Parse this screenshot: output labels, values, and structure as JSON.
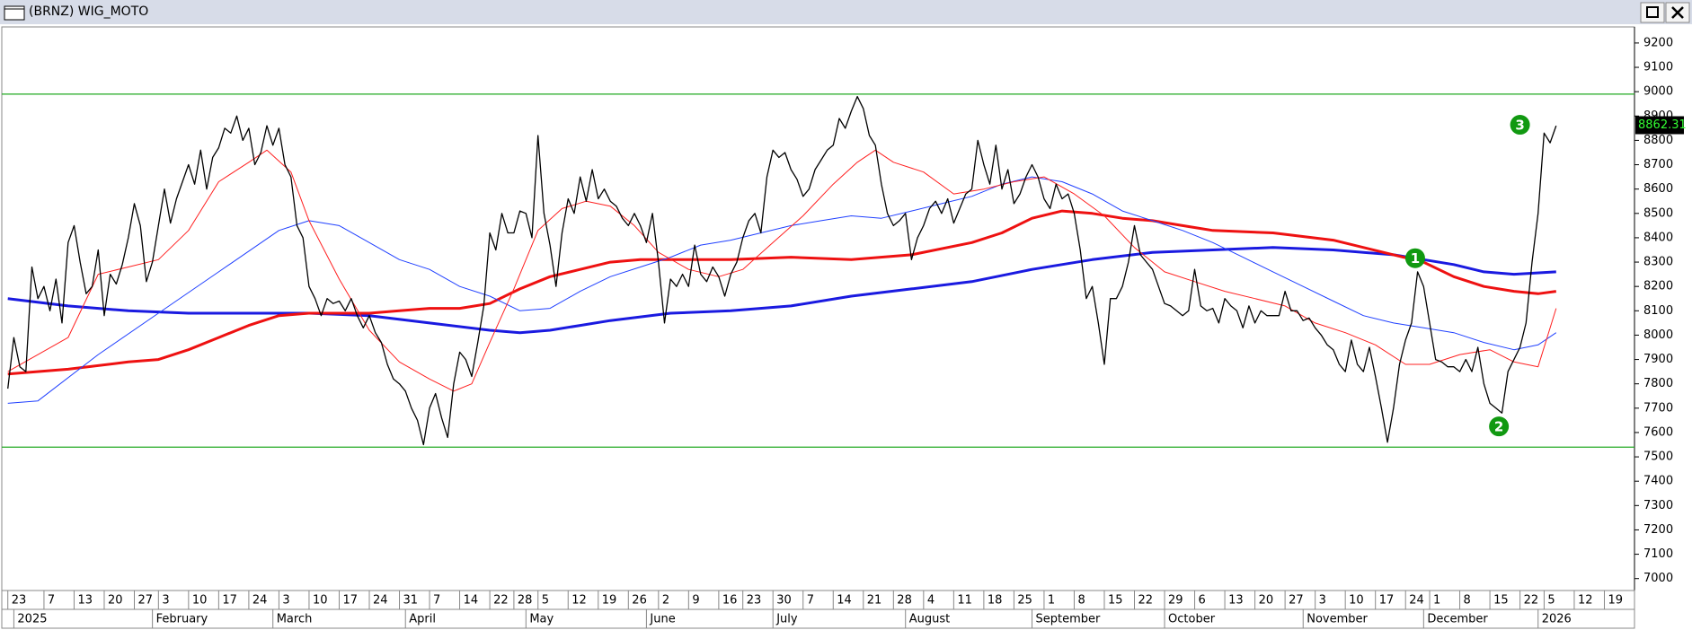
{
  "chart_data": {
    "type": "line",
    "title": "(BRNZ) WIG_MOTO",
    "xlim": [
      -1,
      270
    ],
    "ylim": [
      6951,
      9266
    ],
    "yticks": [
      7000,
      7100,
      7200,
      7300,
      7400,
      7500,
      7600,
      7700,
      7800,
      7900,
      8000,
      8100,
      8200,
      8300,
      8400,
      8500,
      8600,
      8700,
      8800,
      8900,
      9000,
      9100,
      9200
    ],
    "xticks": [
      {
        "value": 0,
        "label": "23"
      },
      {
        "value": 6,
        "label": "7"
      },
      {
        "value": 11,
        "label": "13"
      },
      {
        "value": 16,
        "label": "20"
      },
      {
        "value": 21,
        "label": "27"
      },
      {
        "value": 25,
        "label": "3"
      },
      {
        "value": 30,
        "label": "10"
      },
      {
        "value": 35,
        "label": "17"
      },
      {
        "value": 40,
        "label": "24"
      },
      {
        "value": 45,
        "label": "3"
      },
      {
        "value": 50,
        "label": "10"
      },
      {
        "value": 55,
        "label": "17"
      },
      {
        "value": 60,
        "label": "24"
      },
      {
        "value": 65,
        "label": "31"
      },
      {
        "value": 70,
        "label": "7"
      },
      {
        "value": 75,
        "label": "14"
      },
      {
        "value": 80,
        "label": "22"
      },
      {
        "value": 84,
        "label": "28"
      },
      {
        "value": 88,
        "label": "5"
      },
      {
        "value": 93,
        "label": "12"
      },
      {
        "value": 98,
        "label": "19"
      },
      {
        "value": 103,
        "label": "26"
      },
      {
        "value": 108,
        "label": "2"
      },
      {
        "value": 113,
        "label": "9"
      },
      {
        "value": 118,
        "label": "16"
      },
      {
        "value": 122,
        "label": "23"
      },
      {
        "value": 127,
        "label": "30"
      },
      {
        "value": 132,
        "label": "7"
      },
      {
        "value": 137,
        "label": "14"
      },
      {
        "value": 142,
        "label": "21"
      },
      {
        "value": 147,
        "label": "28"
      },
      {
        "value": 152,
        "label": "4"
      },
      {
        "value": 157,
        "label": "11"
      },
      {
        "value": 162,
        "label": "18"
      },
      {
        "value": 167,
        "label": "25"
      },
      {
        "value": 172,
        "label": "1"
      },
      {
        "value": 177,
        "label": "8"
      },
      {
        "value": 182,
        "label": "15"
      },
      {
        "value": 187,
        "label": "22"
      },
      {
        "value": 192,
        "label": "29"
      },
      {
        "value": 197,
        "label": "6"
      },
      {
        "value": 202,
        "label": "13"
      },
      {
        "value": 207,
        "label": "20"
      },
      {
        "value": 212,
        "label": "27"
      },
      {
        "value": 217,
        "label": "3"
      },
      {
        "value": 222,
        "label": "10"
      },
      {
        "value": 227,
        "label": "17"
      },
      {
        "value": 232,
        "label": "24"
      },
      {
        "value": 236,
        "label": "1"
      },
      {
        "value": 241,
        "label": "8"
      },
      {
        "value": 246,
        "label": "15"
      },
      {
        "value": 251,
        "label": "22"
      },
      {
        "value": 255,
        "label": "5"
      },
      {
        "value": 260,
        "label": "12"
      },
      {
        "value": 265,
        "label": "19"
      }
    ],
    "month_ticks": [
      {
        "value": 1,
        "label": "2025"
      },
      {
        "value": 24,
        "label": "February"
      },
      {
        "value": 44,
        "label": "March"
      },
      {
        "value": 66,
        "label": "April"
      },
      {
        "value": 86,
        "label": "May"
      },
      {
        "value": 106,
        "label": "June"
      },
      {
        "value": 127,
        "label": "July"
      },
      {
        "value": 149,
        "label": "August"
      },
      {
        "value": 170,
        "label": "September"
      },
      {
        "value": 192,
        "label": "October"
      },
      {
        "value": 215,
        "label": "November"
      },
      {
        "value": 235,
        "label": "December"
      },
      {
        "value": 254,
        "label": "2026"
      }
    ],
    "hlines": {
      "color": "#22aa22",
      "values": [
        8990,
        7540
      ]
    },
    "last_value": 8862.31,
    "series": [
      {
        "color": "#000000",
        "width": 1.3,
        "values": [
          7780,
          7990,
          7870,
          7850,
          8280,
          8150,
          8200,
          8100,
          8230,
          8050,
          8380,
          8450,
          8300,
          8170,
          8200,
          8350,
          8080,
          8250,
          8210,
          8290,
          8400,
          8540,
          8450,
          8220,
          8300,
          8450,
          8600,
          8460,
          8560,
          8630,
          8700,
          8620,
          8760,
          8600,
          8730,
          8770,
          8850,
          8830,
          8900,
          8800,
          8850,
          8700,
          8750,
          8860,
          8780,
          8850,
          8700,
          8650,
          8450,
          8400,
          8200,
          8150,
          8080,
          8150,
          8130,
          8140,
          8100,
          8150,
          8080,
          8030,
          8080,
          8010,
          7970,
          7880,
          7820,
          7800,
          7770,
          7700,
          7650,
          7550,
          7700,
          7760,
          7660,
          7580,
          7800,
          7930,
          7900,
          7830,
          7970,
          8120,
          8420,
          8350,
          8500,
          8420,
          8420,
          8510,
          8500,
          8400,
          8820,
          8500,
          8370,
          8200,
          8420,
          8560,
          8500,
          8650,
          8550,
          8680,
          8560,
          8600,
          8550,
          8530,
          8480,
          8450,
          8500,
          8450,
          8380,
          8500,
          8300,
          8050,
          8230,
          8200,
          8250,
          8200,
          8370,
          8250,
          8220,
          8280,
          8240,
          8160,
          8250,
          8300,
          8400,
          8470,
          8500,
          8420,
          8650,
          8760,
          8730,
          8750,
          8680,
          8640,
          8570,
          8600,
          8680,
          8720,
          8760,
          8780,
          8890,
          8850,
          8920,
          8980,
          8930,
          8820,
          8780,
          8620,
          8500,
          8450,
          8470,
          8500,
          8310,
          8400,
          8450,
          8520,
          8550,
          8500,
          8560,
          8460,
          8520,
          8580,
          8600,
          8800,
          8700,
          8620,
          8780,
          8600,
          8680,
          8540,
          8580,
          8650,
          8700,
          8650,
          8560,
          8520,
          8620,
          8560,
          8580,
          8500,
          8350,
          8150,
          8200,
          8050,
          7880,
          8150,
          8150,
          8200,
          8300,
          8450,
          8330,
          8300,
          8270,
          8200,
          8130,
          8120,
          8100,
          8080,
          8100,
          8270,
          8120,
          8100,
          8110,
          8050,
          8150,
          8120,
          8100,
          8030,
          8120,
          8050,
          8100,
          8080,
          8080,
          8080,
          8180,
          8100,
          8100,
          8060,
          8070,
          8030,
          8000,
          7960,
          7940,
          7880,
          7850,
          7980,
          7880,
          7850,
          7950,
          7830,
          7700,
          7560,
          7700,
          7880,
          7980,
          8050,
          8260,
          8200,
          8050,
          7900,
          7890,
          7870,
          7870,
          7850,
          7900,
          7850,
          7950,
          7800,
          7720,
          7700,
          7680,
          7850,
          7900,
          7950,
          8050,
          8300,
          8500,
          8830,
          8790,
          8860
        ]
      },
      {
        "color": "#ff2020",
        "width": 1,
        "x": [
          0,
          10,
          15,
          20,
          25,
          30,
          35,
          40,
          43,
          47,
          50,
          55,
          60,
          65,
          70,
          74,
          77,
          80,
          84,
          88,
          92,
          96,
          100,
          104,
          108,
          113,
          118,
          122,
          127,
          132,
          137,
          141,
          144,
          147,
          152,
          157,
          162,
          167,
          172,
          177,
          182,
          187,
          192,
          197,
          202,
          207,
          212,
          217,
          222,
          227,
          232,
          236,
          241,
          246,
          250,
          254,
          257
        ],
        "values": [
          7850,
          7990,
          8250,
          8280,
          8310,
          8430,
          8630,
          8710,
          8760,
          8670,
          8470,
          8230,
          8020,
          7890,
          7820,
          7770,
          7800,
          7970,
          8190,
          8430,
          8520,
          8550,
          8530,
          8450,
          8340,
          8270,
          8240,
          8270,
          8380,
          8490,
          8620,
          8710,
          8760,
          8710,
          8670,
          8580,
          8600,
          8630,
          8650,
          8580,
          8490,
          8360,
          8260,
          8220,
          8180,
          8150,
          8120,
          8050,
          8010,
          7960,
          7880,
          7880,
          7920,
          7940,
          7890,
          7870,
          8110
        ]
      },
      {
        "color": "#2040ff",
        "width": 1,
        "x": [
          0,
          5,
          15,
          25,
          35,
          45,
          50,
          55,
          60,
          65,
          70,
          75,
          80,
          85,
          90,
          95,
          100,
          105,
          110,
          115,
          120,
          125,
          130,
          135,
          140,
          145,
          150,
          155,
          160,
          165,
          170,
          175,
          180,
          185,
          190,
          195,
          200,
          205,
          210,
          215,
          220,
          225,
          230,
          235,
          240,
          245,
          250,
          254,
          257
        ],
        "values": [
          7720,
          7730,
          7920,
          8090,
          8260,
          8430,
          8470,
          8450,
          8380,
          8310,
          8270,
          8200,
          8160,
          8100,
          8110,
          8180,
          8240,
          8280,
          8320,
          8370,
          8390,
          8420,
          8450,
          8470,
          8490,
          8480,
          8510,
          8540,
          8570,
          8620,
          8650,
          8630,
          8580,
          8510,
          8470,
          8430,
          8380,
          8320,
          8260,
          8200,
          8140,
          8080,
          8050,
          8030,
          8010,
          7970,
          7940,
          7960,
          8010
        ]
      },
      {
        "color": "#ee1111",
        "width": 3,
        "x": [
          0,
          10,
          20,
          25,
          30,
          35,
          40,
          45,
          50,
          55,
          60,
          65,
          70,
          75,
          80,
          85,
          90,
          95,
          100,
          105,
          110,
          120,
          130,
          140,
          150,
          160,
          165,
          170,
          175,
          180,
          185,
          190,
          195,
          200,
          210,
          220,
          230,
          235,
          240,
          245,
          250,
          254,
          257
        ],
        "values": [
          7840,
          7860,
          7890,
          7900,
          7940,
          7990,
          8040,
          8080,
          8090,
          8090,
          8090,
          8100,
          8110,
          8110,
          8130,
          8190,
          8240,
          8270,
          8300,
          8310,
          8310,
          8310,
          8320,
          8310,
          8330,
          8380,
          8420,
          8480,
          8510,
          8500,
          8480,
          8470,
          8450,
          8430,
          8420,
          8390,
          8330,
          8300,
          8240,
          8200,
          8180,
          8170,
          8180
        ]
      },
      {
        "color": "#1a1ae0",
        "width": 3,
        "x": [
          0,
          10,
          20,
          30,
          40,
          50,
          60,
          70,
          80,
          85,
          90,
          95,
          100,
          110,
          120,
          130,
          140,
          150,
          160,
          170,
          180,
          190,
          200,
          210,
          220,
          230,
          235,
          240,
          245,
          250,
          257
        ],
        "values": [
          8150,
          8120,
          8100,
          8090,
          8090,
          8090,
          8080,
          8050,
          8020,
          8010,
          8020,
          8040,
          8060,
          8090,
          8100,
          8120,
          8160,
          8190,
          8220,
          8270,
          8310,
          8340,
          8350,
          8360,
          8350,
          8330,
          8310,
          8290,
          8260,
          8250,
          8260
        ]
      }
    ],
    "annotations": [
      {
        "x": 233.6,
        "y": 8316,
        "label": "1"
      },
      {
        "x": 247.5,
        "y": 7625,
        "label": "2"
      },
      {
        "x": 251,
        "y": 8864,
        "label": "3"
      }
    ]
  }
}
